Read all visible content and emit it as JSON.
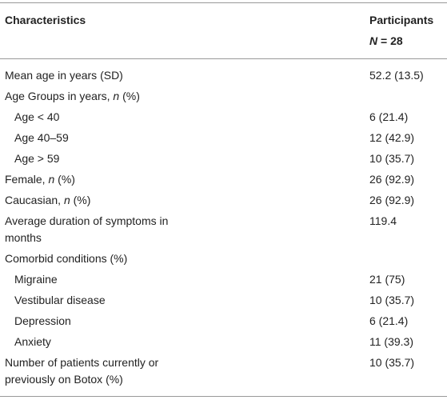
{
  "header": {
    "characteristics": "Characteristics",
    "participants": "Participants",
    "n": "N = 28"
  },
  "rows": [
    {
      "label": "Mean age in years (SD)",
      "value": "52.2 (13.5)"
    },
    {
      "label": "Age Groups in years, n (%)",
      "items": [
        {
          "label": "Age < 40",
          "value": "6 (21.4)"
        },
        {
          "label": "Age 40–59",
          "value": "12 (42.9)"
        },
        {
          "label": "Age > 59",
          "value": "10 (35.7)"
        }
      ]
    },
    {
      "label": "Female, n (%)",
      "value": "26 (92.9)"
    },
    {
      "label": "Caucasian, n (%)",
      "value": "26 (92.9)"
    },
    {
      "label": "Average duration of symptoms in months",
      "value": "119.4"
    },
    {
      "label": "Comorbid conditions (%)",
      "items": [
        {
          "label": "Migraine",
          "value": "21 (75)"
        },
        {
          "label": "Vestibular disease",
          "value": "10 (35.7)"
        },
        {
          "label": "Depression",
          "value": "6 (21.4)"
        },
        {
          "label": "Anxiety",
          "value": "11 (39.3)"
        }
      ]
    },
    {
      "label": "Number of patients currently or previously on Botox (%)",
      "value": "10 (35.7)"
    }
  ]
}
